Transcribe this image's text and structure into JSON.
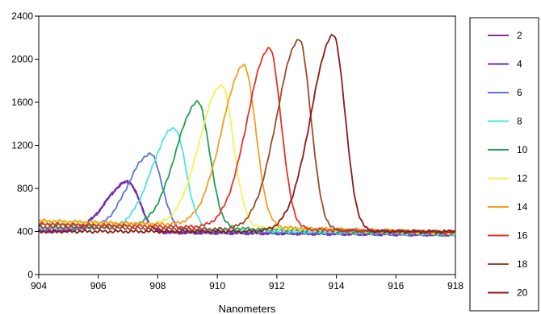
{
  "chart_data": {
    "type": "line",
    "xlabel": "Nanometers",
    "ylabel": "",
    "xlim": [
      904,
      918
    ],
    "ylim": [
      0,
      2400
    ],
    "x_ticks": [
      "904",
      "906",
      "908",
      "910",
      "912",
      "914",
      "916",
      "918"
    ],
    "y_ticks": [
      "0",
      "400",
      "800",
      "1200",
      "1600",
      "2000",
      "2400"
    ],
    "grid": false,
    "legend_position": "right",
    "series": [
      {
        "name": "2",
        "color": "#8b2f8b",
        "peak_x": 907.0,
        "peak_y": 860,
        "baseline_left": 400,
        "baseline_right": 370
      },
      {
        "name": "4",
        "color": "#6a2db8",
        "peak_x": 907.0,
        "peak_y": 860,
        "baseline_left": 400,
        "baseline_right": 370
      },
      {
        "name": "6",
        "color": "#5b73d6",
        "peak_x": 907.75,
        "peak_y": 1120,
        "baseline_left": 420,
        "baseline_right": 370
      },
      {
        "name": "8",
        "color": "#4fe3e3",
        "peak_x": 908.55,
        "peak_y": 1360,
        "baseline_left": 440,
        "baseline_right": 375
      },
      {
        "name": "10",
        "color": "#1fa050",
        "peak_x": 909.35,
        "peak_y": 1600,
        "baseline_left": 470,
        "baseline_right": 380
      },
      {
        "name": "12",
        "color": "#f2f25a",
        "peak_x": 910.15,
        "peak_y": 1760,
        "baseline_left": 490,
        "baseline_right": 385
      },
      {
        "name": "14",
        "color": "#f0a020",
        "peak_x": 910.9,
        "peak_y": 1940,
        "baseline_left": 500,
        "baseline_right": 390
      },
      {
        "name": "16",
        "color": "#e8322a",
        "peak_x": 911.75,
        "peak_y": 2100,
        "baseline_left": 470,
        "baseline_right": 390
      },
      {
        "name": "18",
        "color": "#9a4a2a",
        "peak_x": 912.75,
        "peak_y": 2180,
        "baseline_left": 440,
        "baseline_right": 395
      },
      {
        "name": "20",
        "color": "#8b1a1a",
        "peak_x": 913.9,
        "peak_y": 2220,
        "baseline_left": 400,
        "baseline_right": 400
      }
    ]
  }
}
